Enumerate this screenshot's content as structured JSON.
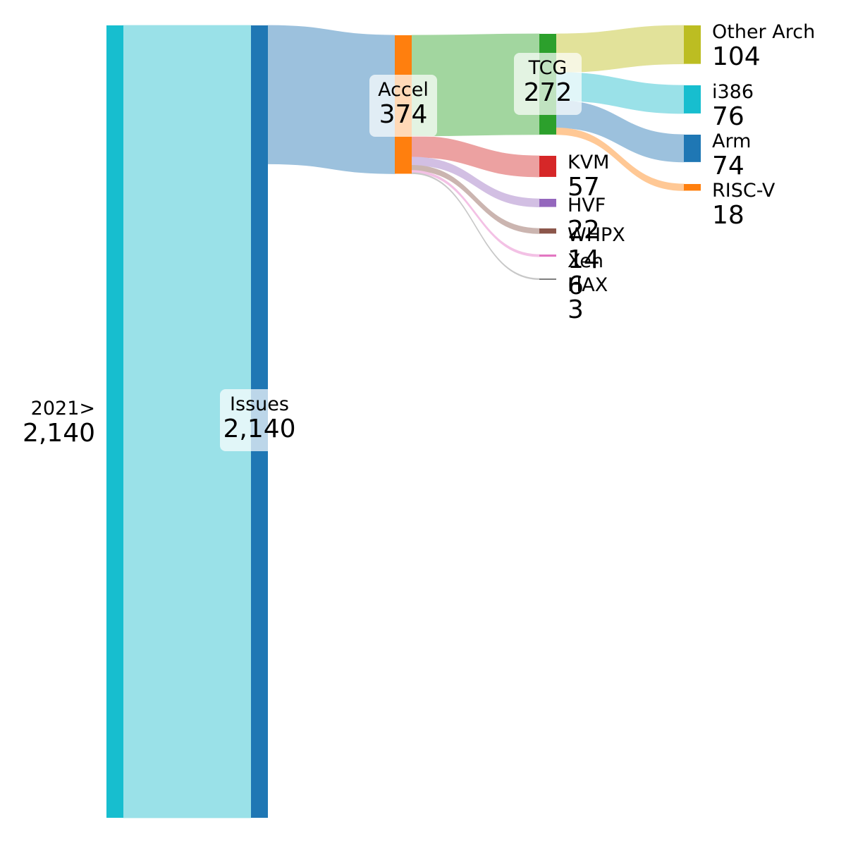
{
  "chart_data": {
    "type": "sankey",
    "title": "",
    "value_format": "thousands-comma",
    "nodes": [
      {
        "id": "2021",
        "label": "2021>",
        "value": 2140,
        "color": "#17becf"
      },
      {
        "id": "issues",
        "label": "Issues",
        "value": 2140,
        "color": "#1f77b4"
      },
      {
        "id": "accel",
        "label": "Accel",
        "value": 374,
        "color": "#ff7f0e"
      },
      {
        "id": "tcg",
        "label": "TCG",
        "value": 272,
        "color": "#2ca02c"
      },
      {
        "id": "kvm",
        "label": "KVM",
        "value": 57,
        "color": "#d62728"
      },
      {
        "id": "hvf",
        "label": "HVF",
        "value": 22,
        "color": "#9467bd"
      },
      {
        "id": "whpx",
        "label": "WHPX",
        "value": 14,
        "color": "#8c564b"
      },
      {
        "id": "xen",
        "label": "Xen",
        "value": 6,
        "color": "#e377c2"
      },
      {
        "id": "hax",
        "label": "HAX",
        "value": 3,
        "color": "#7f7f7f"
      },
      {
        "id": "other_arch",
        "label": "Other Arch",
        "value": 104,
        "color": "#bcbd22"
      },
      {
        "id": "i386",
        "label": "i386",
        "value": 76,
        "color": "#17becf"
      },
      {
        "id": "arm",
        "label": "Arm",
        "value": 74,
        "color": "#1f77b4"
      },
      {
        "id": "riscv",
        "label": "RISC-V",
        "value": 18,
        "color": "#ff7f0e"
      }
    ],
    "links": [
      {
        "source": "2021",
        "target": "issues",
        "value": 2140,
        "color": "#9ae1e8"
      },
      {
        "source": "issues",
        "target": "accel",
        "value": 374,
        "color": "#9cc1dd"
      },
      {
        "source": "accel",
        "target": "tcg",
        "value": 272,
        "color": "#a2d69f"
      },
      {
        "source": "accel",
        "target": "kvm",
        "value": 57,
        "color": "#eca1a1"
      },
      {
        "source": "accel",
        "target": "hvf",
        "value": 22,
        "color": "#d2bfe3"
      },
      {
        "source": "accel",
        "target": "whpx",
        "value": 14,
        "color": "#cbb5b0"
      },
      {
        "source": "accel",
        "target": "xen",
        "value": 6,
        "color": "#f3c1e5"
      },
      {
        "source": "accel",
        "target": "hax",
        "value": 3,
        "color": "#c8c8c8"
      },
      {
        "source": "tcg",
        "target": "other_arch",
        "value": 104,
        "color": "#e2e29a"
      },
      {
        "source": "tcg",
        "target": "i386",
        "value": 76,
        "color": "#9ae1e8"
      },
      {
        "source": "tcg",
        "target": "arm",
        "value": 74,
        "color": "#9cc1dd"
      },
      {
        "source": "tcg",
        "target": "riscv",
        "value": 18,
        "color": "#ffc895"
      }
    ]
  }
}
